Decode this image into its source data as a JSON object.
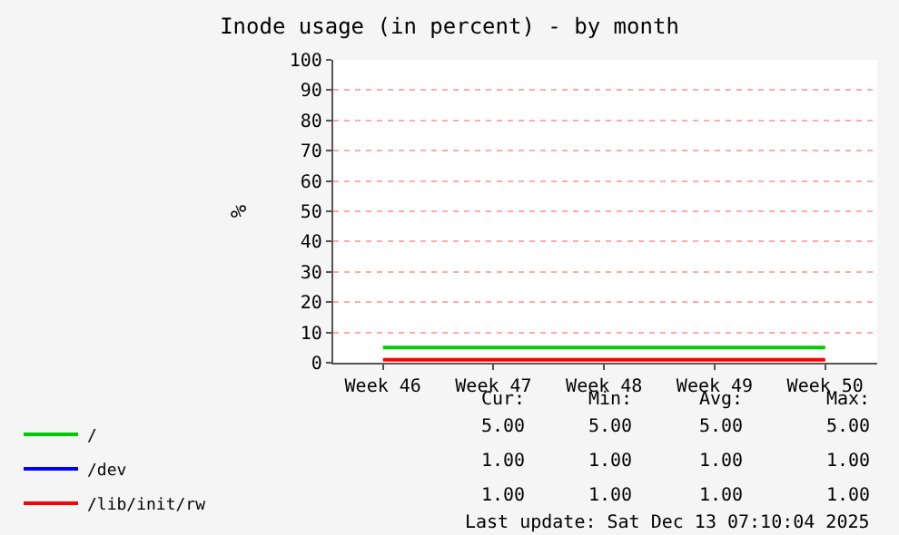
{
  "chart_data": {
    "type": "line",
    "title": "Inode usage (in percent) - by month",
    "ylabel": "%",
    "categories": [
      "Week 46",
      "Week 47",
      "Week 48",
      "Week 49",
      "Week 50"
    ],
    "series": [
      {
        "name": "/",
        "color": "#00cc00",
        "values": [
          5,
          5,
          5,
          5,
          5
        ]
      },
      {
        "name": "/dev",
        "color": "#0000ff",
        "values": [
          null,
          null,
          null,
          null,
          null
        ]
      },
      {
        "name": "/lib/init/rw",
        "color": "#ff0000",
        "values": [
          1,
          1,
          1,
          1,
          1
        ]
      }
    ],
    "ylim": [
      0,
      100
    ],
    "yticks": [
      0,
      10,
      20,
      30,
      40,
      50,
      60,
      70,
      80,
      90,
      100
    ],
    "grid": "y",
    "legend": "bottom left",
    "marker": "none",
    "line_style": "solid",
    "annotations": [
      "Cur:",
      "Min:",
      "Avg:",
      "Max:",
      "5.00",
      "5.00",
      "5.00",
      "5.00",
      "1.00",
      "1.00",
      "1.00",
      "1.00",
      "1.00",
      "1.00",
      "1.00",
      "1.00",
      "Last update: Sat Dec 13 07:10:04 2025"
    ]
  }
}
